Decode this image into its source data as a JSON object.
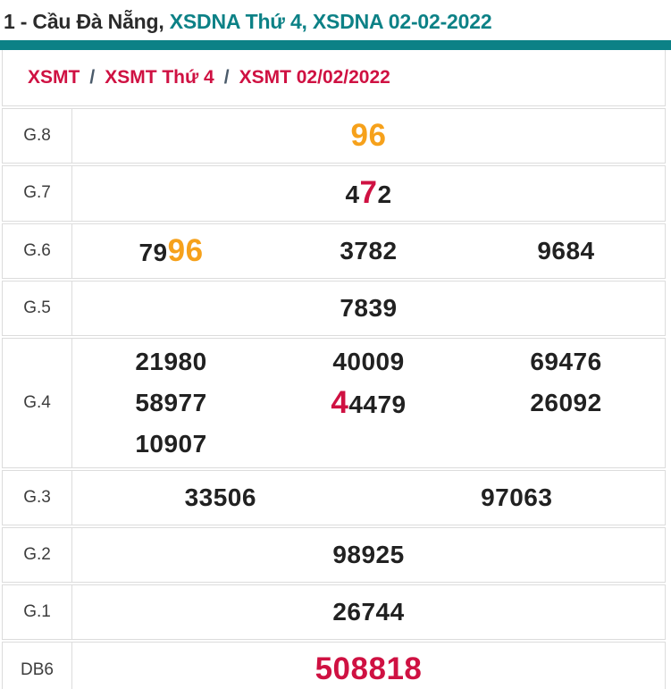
{
  "title": {
    "plain": "1 - Cầu Đà Nẵng, ",
    "highlight": "XSDNA Thứ 4, XSDNA 02-02-2022"
  },
  "breadcrumb": {
    "items": [
      "XSMT",
      "XSMT Thứ 4",
      "XSMT 02/02/2022"
    ],
    "separator": "/"
  },
  "colors": {
    "teal": "#0c8186",
    "crimson": "#cf1142",
    "orange": "#f6a11b",
    "dark_text": "#212121",
    "border": "#dcdcdc"
  },
  "prize_table": {
    "rows": [
      {
        "label": "G.8",
        "cols": 1,
        "values": [
          [
            {
              "t": "96",
              "color": "orange",
              "big": true
            }
          ]
        ]
      },
      {
        "label": "G.7",
        "cols": 1,
        "values": [
          [
            {
              "t": "4"
            },
            {
              "t": "7",
              "color": "crimson",
              "big": true
            },
            {
              "t": "2"
            }
          ]
        ]
      },
      {
        "label": "G.6",
        "cols": 3,
        "values": [
          [
            {
              "t": "79"
            },
            {
              "t": "96",
              "color": "orange",
              "big": true
            }
          ],
          [
            {
              "t": "3782"
            }
          ],
          [
            {
              "t": "9684"
            }
          ]
        ]
      },
      {
        "label": "G.5",
        "cols": 1,
        "values": [
          [
            {
              "t": "7839"
            }
          ]
        ]
      },
      {
        "label": "G.4",
        "cols": 3,
        "values": [
          [
            {
              "t": "21980"
            }
          ],
          [
            {
              "t": "40009"
            }
          ],
          [
            {
              "t": "69476"
            }
          ],
          [
            {
              "t": "58977"
            }
          ],
          [
            {
              "t": "4",
              "color": "crimson",
              "big": true
            },
            {
              "t": "4479"
            }
          ],
          [
            {
              "t": "26092"
            }
          ],
          [
            {
              "t": "10907"
            }
          ]
        ]
      },
      {
        "label": "G.3",
        "cols": 2,
        "values": [
          [
            {
              "t": "33506"
            }
          ],
          [
            {
              "t": "97063"
            }
          ]
        ]
      },
      {
        "label": "G.2",
        "cols": 1,
        "values": [
          [
            {
              "t": "98925"
            }
          ]
        ]
      },
      {
        "label": "G.1",
        "cols": 1,
        "values": [
          [
            {
              "t": "26744"
            }
          ]
        ]
      },
      {
        "label": "DB6",
        "cols": 1,
        "values": [
          [
            {
              "t": "508818",
              "color": "crimson",
              "big": true
            }
          ]
        ]
      }
    ]
  }
}
